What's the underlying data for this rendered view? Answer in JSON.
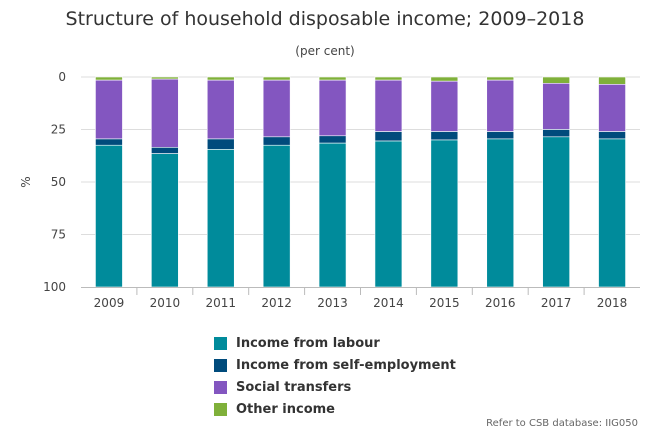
{
  "chart_data": {
    "type": "bar",
    "stacked": true,
    "title": "Structure of household disposable income; 2009–2018",
    "subtitle": "(per cent)",
    "ylabel": "%",
    "xlabel": "",
    "ylim": [
      0,
      100
    ],
    "y_inverted": true,
    "yticks": [
      "0",
      "25",
      "50",
      "75",
      "100"
    ],
    "categories": [
      "2009",
      "2010",
      "2011",
      "2012",
      "2013",
      "2014",
      "2015",
      "2016",
      "2017",
      "2018"
    ],
    "series": [
      {
        "name": "Other income",
        "color": "#7fb03a",
        "values": [
          1.5,
          1.0,
          1.5,
          1.5,
          1.5,
          1.5,
          2.0,
          1.5,
          3.0,
          3.5
        ]
      },
      {
        "name": "Social transfers",
        "color": "#8356c0",
        "values": [
          28.0,
          32.5,
          28.0,
          27.0,
          26.5,
          24.5,
          24.0,
          24.5,
          22.0,
          22.5
        ]
      },
      {
        "name": "Income from self-employment",
        "color": "#004b7c",
        "values": [
          3.0,
          3.0,
          5.0,
          4.0,
          3.5,
          4.5,
          4.0,
          3.5,
          3.5,
          3.5
        ]
      },
      {
        "name": "Income from labour",
        "color": "#008b9b",
        "values": [
          67.5,
          63.5,
          65.5,
          67.5,
          68.5,
          69.5,
          70.0,
          70.5,
          71.5,
          70.5
        ]
      }
    ],
    "legend_order": [
      "Income from labour",
      "Income from self-employment",
      "Social transfers",
      "Other income"
    ],
    "grid": true,
    "legend_position": "bottom"
  },
  "source_note": "Refer to CSB database: IIG050"
}
